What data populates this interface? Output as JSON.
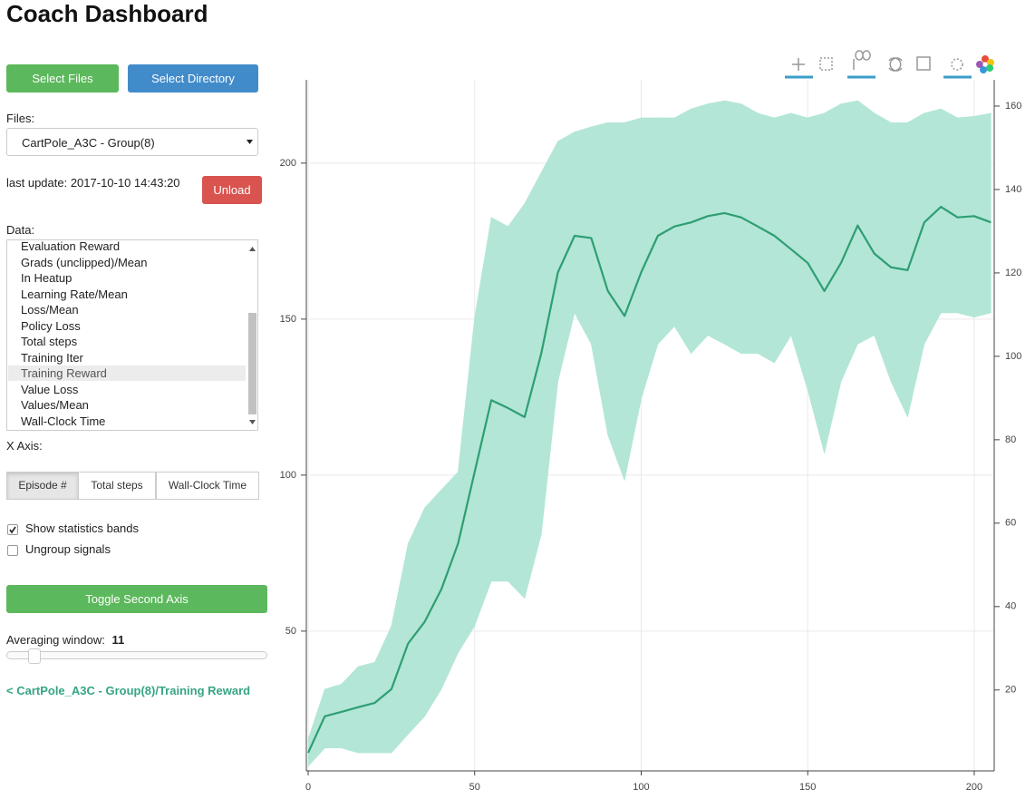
{
  "header": {
    "title": "Coach Dashboard"
  },
  "controls": {
    "select_files": "Select Files",
    "select_directory": "Select Directory",
    "files_label": "Files:",
    "files_selected": "CartPole_A3C - Group(8)",
    "last_update": "last update: 2017-10-10 14:43:20",
    "unload": "Unload",
    "data_label": "Data:",
    "data_items": [
      "Evaluation Reward",
      "Grads (unclipped)/Mean",
      "In Heatup",
      "Learning Rate/Mean",
      "Loss/Mean",
      "Policy Loss",
      "Total steps",
      "Training Iter",
      "Training Reward",
      "Value Loss",
      "Values/Mean",
      "Wall-Clock Time"
    ],
    "data_selected": 8,
    "x_axis_label": "X Axis:",
    "x_axis_options": [
      "Episode #",
      "Total steps",
      "Wall-Clock Time"
    ],
    "x_axis_selected": 0,
    "checkboxes": [
      {
        "label": "Show statistics bands",
        "checked": true
      },
      {
        "label": "Ungroup signals",
        "checked": false
      }
    ],
    "toggle_second_axis": "Toggle Second Axis",
    "averaging_label": "Averaging window:",
    "averaging_value": 11,
    "signal_link": "< CartPole_A3C - Group(8)/Training Reward"
  },
  "chart_data": {
    "type": "line",
    "x": [
      0,
      5,
      10,
      15,
      20,
      25,
      30,
      35,
      40,
      45,
      50,
      55,
      60,
      65,
      70,
      75,
      80,
      85,
      90,
      95,
      100,
      105,
      110,
      115,
      120,
      125,
      130,
      135,
      140,
      145,
      150,
      155,
      160,
      165,
      170,
      175,
      180,
      185,
      190,
      195,
      200,
      205
    ],
    "series": [
      {
        "color": "#2e9e73",
        "values": [
          11,
          22.7,
          24.1,
          25.6,
          27,
          31.4,
          46,
          53,
          63.4,
          78,
          101,
          124,
          121.5,
          118.6,
          139,
          165,
          176.7,
          176,
          159,
          151,
          165,
          176.7,
          179.7,
          181,
          183,
          184,
          182.6,
          179.7,
          176.7,
          172.4,
          168,
          159,
          168,
          180,
          171,
          166.6,
          165.7,
          181,
          186,
          182.6,
          183,
          181
        ]
      }
    ],
    "band": {
      "color": "#b3e6d6",
      "upper": [
        15.4,
        31.4,
        33,
        38.6,
        40,
        51.6,
        78,
        89.5,
        95.3,
        101,
        150.6,
        182.6,
        179.7,
        187,
        197,
        207,
        210,
        211.6,
        213,
        213,
        214.5,
        214.5,
        214.5,
        217.4,
        219,
        220,
        219,
        216,
        214.5,
        216,
        214.5,
        216,
        219,
        220,
        216,
        213,
        213,
        216,
        217.4,
        214.5,
        215,
        216
      ],
      "lower": [
        6.7,
        12.5,
        12.5,
        11,
        11,
        11,
        16.9,
        22.7,
        31.4,
        43,
        51.7,
        66,
        66,
        60.5,
        81,
        130,
        152,
        142,
        112.8,
        98.3,
        124.4,
        142,
        147.7,
        139,
        144.8,
        142,
        139,
        139,
        136,
        144.8,
        127.3,
        107,
        130,
        142,
        144.8,
        130,
        118.6,
        142,
        152,
        152,
        150.6,
        152
      ]
    },
    "xlim": [
      0,
      206
    ],
    "ylim": [
      5.2,
      226.7
    ],
    "y2lim": [
      0.6,
      166.3
    ],
    "xticks": [
      0,
      50,
      100,
      150,
      200
    ],
    "yticks": [
      50,
      100,
      150,
      200
    ],
    "y2ticks": [
      20,
      40,
      60,
      80,
      100,
      120,
      140,
      160
    ],
    "grid": true
  }
}
